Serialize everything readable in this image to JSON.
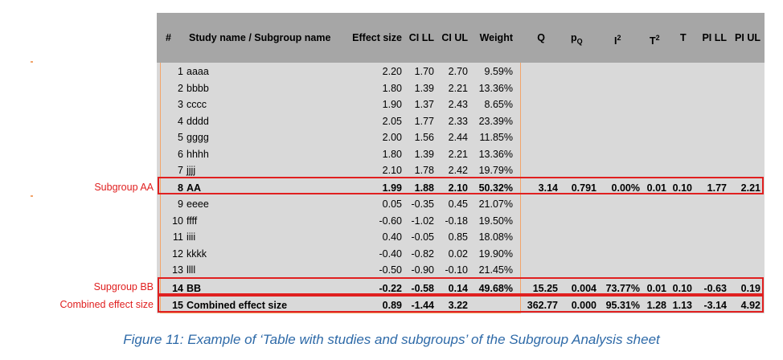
{
  "headers": {
    "num": "#",
    "name": "Study name / Subgroup name",
    "es": "Effect size",
    "cill": "CI LL",
    "ciul": "CI UL",
    "weight": "Weight",
    "q": "Q",
    "pq_base": "p",
    "pq_sub": "Q",
    "i2_base": "I",
    "i2_sup": "2",
    "t2_base": "T",
    "t2_sup": "2",
    "t": "T",
    "pill": "PI LL",
    "piul": "PI UL"
  },
  "rows": [
    {
      "num": "1",
      "name": "aaaa",
      "es": "2.20",
      "cill": "1.70",
      "ciul": "2.70",
      "weight": "9.59%"
    },
    {
      "num": "2",
      "name": "bbbb",
      "es": "1.80",
      "cill": "1.39",
      "ciul": "2.21",
      "weight": "13.36%"
    },
    {
      "num": "3",
      "name": "cccc",
      "es": "1.90",
      "cill": "1.37",
      "ciul": "2.43",
      "weight": "8.65%"
    },
    {
      "num": "4",
      "name": "dddd",
      "es": "2.05",
      "cill": "1.77",
      "ciul": "2.33",
      "weight": "23.39%"
    },
    {
      "num": "5",
      "name": "gggg",
      "es": "2.00",
      "cill": "1.56",
      "ciul": "2.44",
      "weight": "11.85%"
    },
    {
      "num": "6",
      "name": "hhhh",
      "es": "1.80",
      "cill": "1.39",
      "ciul": "2.21",
      "weight": "13.36%"
    },
    {
      "num": "7",
      "name": "jjjj",
      "es": "2.10",
      "cill": "1.78",
      "ciul": "2.42",
      "weight": "19.79%"
    },
    {
      "num": "8",
      "name": "AA",
      "es": "1.99",
      "cill": "1.88",
      "ciul": "2.10",
      "weight": "50.32%",
      "q": "3.14",
      "pq": "0.791",
      "i2": "0.00%",
      "t2": "0.01",
      "t": "0.10",
      "pill": "1.77",
      "piul": "2.21"
    },
    {
      "num": "9",
      "name": "eeee",
      "es": "0.05",
      "cill": "-0.35",
      "ciul": "0.45",
      "weight": "21.07%"
    },
    {
      "num": "10",
      "name": "ffff",
      "es": "-0.60",
      "cill": "-1.02",
      "ciul": "-0.18",
      "weight": "19.50%"
    },
    {
      "num": "11",
      "name": "iiii",
      "es": "0.40",
      "cill": "-0.05",
      "ciul": "0.85",
      "weight": "18.08%"
    },
    {
      "num": "12",
      "name": "kkkk",
      "es": "-0.40",
      "cill": "-0.82",
      "ciul": "0.02",
      "weight": "19.90%"
    },
    {
      "num": "13",
      "name": "llll",
      "es": "-0.50",
      "cill": "-0.90",
      "ciul": "-0.10",
      "weight": "21.45%"
    },
    {
      "num": "14",
      "name": "BB",
      "es": "-0.22",
      "cill": "-0.58",
      "ciul": "0.14",
      "weight": "49.68%",
      "q": "15.25",
      "pq": "0.004",
      "i2": "73.77%",
      "t2": "0.01",
      "t": "0.10",
      "pill": "-0.63",
      "piul": "0.19"
    },
    {
      "num": "15",
      "name": "Combined effect size",
      "es": "0.89",
      "cill": "-1.44",
      "ciul": "3.22",
      "weight": "",
      "q": "362.77",
      "pq": "0.000",
      "i2": "95.31%",
      "t2": "1.28",
      "t": "1.13",
      "pill": "-3.14",
      "piul": "4.92"
    }
  ],
  "side_labels": {
    "aa": "Subgroup AA",
    "bb": "Supgroup BB",
    "combined": "Combined effect size"
  },
  "caption": "Figure 11: Example of ‘Table with studies and subgroups’ of the Subgroup Analysis sheet",
  "colors": {
    "header_bg": "#a6a6a6",
    "body_bg": "#d9d9d9",
    "highlight_border": "#e02020",
    "orange_border": "#f2a46a",
    "caption": "#2e6aa8"
  }
}
